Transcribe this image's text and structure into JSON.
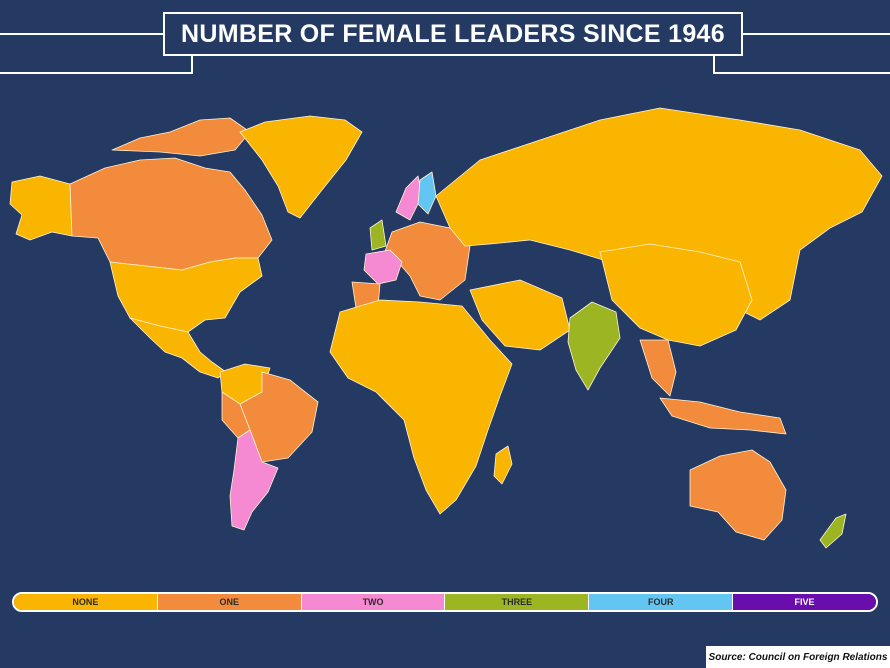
{
  "title": "NUMBER OF FEMALE LEADERS SINCE 1946",
  "source": "Source: Council on Foreign Relations",
  "colors": {
    "background": "#243a63",
    "none": "#f9b500",
    "one": "#f28b3c",
    "two": "#f58ad3",
    "three": "#9cb523",
    "four": "#63c6f2",
    "five": "#6a0dad"
  },
  "legend": [
    {
      "label": "NONE",
      "color": "#f9b500"
    },
    {
      "label": "ONE",
      "color": "#f28b3c"
    },
    {
      "label": "TWO",
      "color": "#f58ad3"
    },
    {
      "label": "THREE",
      "color": "#9cb523"
    },
    {
      "label": "FOUR",
      "color": "#63c6f2"
    },
    {
      "label": "FIVE",
      "color": "#6a0dad"
    }
  ],
  "regions": [
    {
      "name": "alaska",
      "category": "none"
    },
    {
      "name": "canada",
      "category": "one"
    },
    {
      "name": "greenland",
      "category": "none"
    },
    {
      "name": "usa",
      "category": "none"
    },
    {
      "name": "mexico-central-america",
      "category": "none"
    },
    {
      "name": "south-america-north",
      "category": "none"
    },
    {
      "name": "brazil",
      "category": "one"
    },
    {
      "name": "peru",
      "category": "one"
    },
    {
      "name": "argentina-chile",
      "category": "two"
    },
    {
      "name": "western-europe",
      "category": "one"
    },
    {
      "name": "france",
      "category": "two"
    },
    {
      "name": "uk",
      "category": "three"
    },
    {
      "name": "norway",
      "category": "two"
    },
    {
      "name": "finland",
      "category": "four"
    },
    {
      "name": "russia-asia",
      "category": "none"
    },
    {
      "name": "africa",
      "category": "none"
    },
    {
      "name": "middle-east",
      "category": "none"
    },
    {
      "name": "india",
      "category": "three"
    },
    {
      "name": "china",
      "category": "none"
    },
    {
      "name": "southeast-asia",
      "category": "one"
    },
    {
      "name": "australia",
      "category": "one"
    },
    {
      "name": "new-zealand",
      "category": "three"
    }
  ]
}
